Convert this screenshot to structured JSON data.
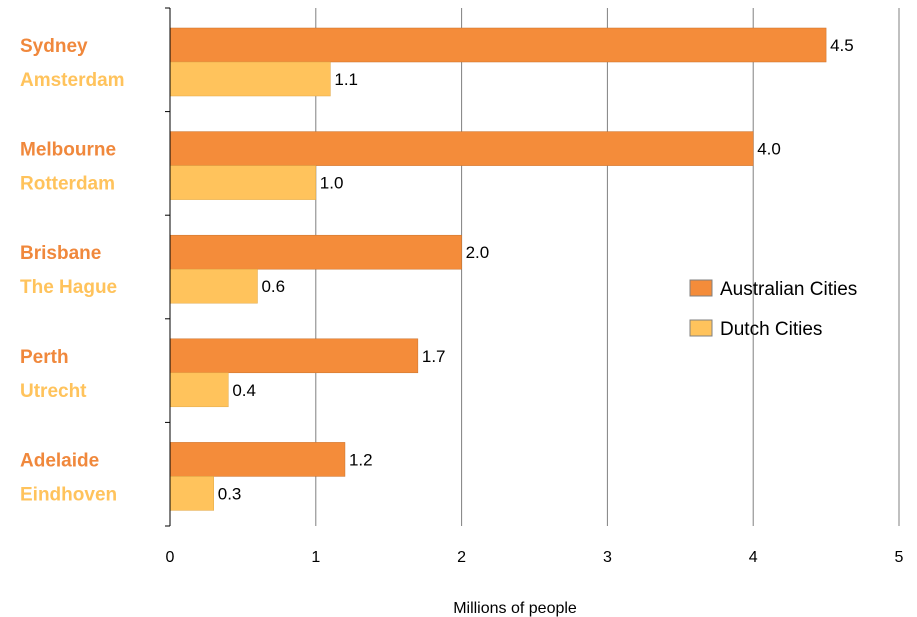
{
  "chart_data": {
    "type": "bar",
    "orientation": "horizontal",
    "xlabel": "Millions of people",
    "xlim": [
      0,
      5
    ],
    "xticks": [
      "0",
      "1",
      "2",
      "3",
      "4",
      "5"
    ],
    "grid": true,
    "legend_position": "right",
    "groups": [
      {
        "australian": "Sydney",
        "dutch": "Amsterdam",
        "australian_value": 4.5,
        "dutch_value": 1.1,
        "australian_label": "4.5",
        "dutch_label": "1.1"
      },
      {
        "australian": "Melbourne",
        "dutch": "Rotterdam",
        "australian_value": 4.0,
        "dutch_value": 1.0,
        "australian_label": "4.0",
        "dutch_label": "1.0"
      },
      {
        "australian": "Brisbane",
        "dutch": "The Hague",
        "australian_value": 2.0,
        "dutch_value": 0.6,
        "australian_label": "2.0",
        "dutch_label": "0.6"
      },
      {
        "australian": "Perth",
        "dutch": "Utrecht",
        "australian_value": 1.7,
        "dutch_value": 0.4,
        "australian_label": "1.7",
        "dutch_label": "0.4"
      },
      {
        "australian": "Adelaide",
        "dutch": "Eindhoven",
        "australian_value": 1.2,
        "dutch_value": 0.3,
        "australian_label": "1.2",
        "dutch_label": "0.3"
      }
    ],
    "series": [
      {
        "name": "Australian Cities",
        "color": "#f48c3a",
        "label_color": "#f0883c"
      },
      {
        "name": "Dutch Cities",
        "color": "#ffc35c",
        "label_color": "#ffc35c"
      }
    ]
  }
}
